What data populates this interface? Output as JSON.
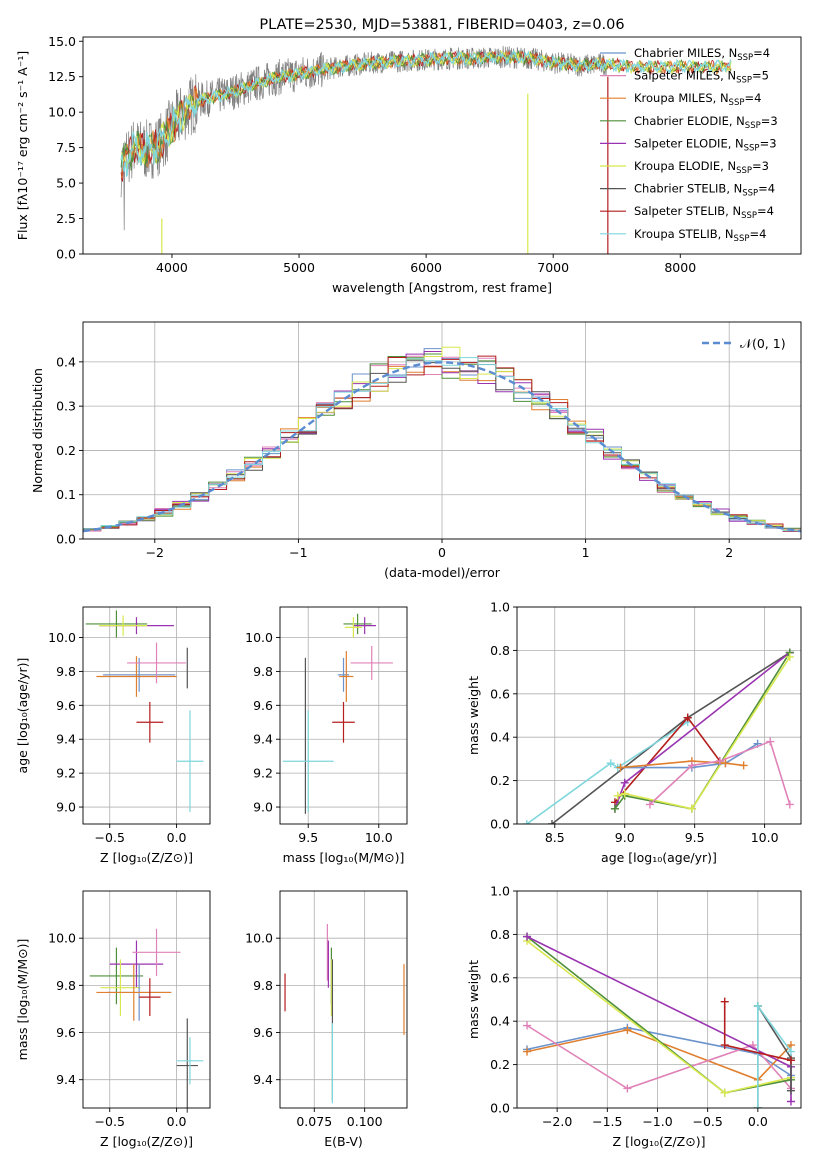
{
  "colors": {
    "chabrier_miles": "#6b93cc",
    "salpeter_miles": "#e082b8",
    "kroupa_miles": "#e07f2e",
    "chabrier_elodie": "#4f8f3a",
    "salpeter_elodie": "#9a33b1",
    "kroupa_elodie": "#d8e84e",
    "chabrier_stelib": "#555555",
    "salpeter_stelib": "#b41e1e",
    "kroupa_stelib": "#7fd6dc",
    "gauss": "#5b8bd0",
    "grid": "#b0b0b0"
  },
  "chart_data": [
    {
      "id": "spectrum",
      "type": "line",
      "title": "PLATE=2530, MJD=53881, FIBERID=0403, z=0.06",
      "xlabel": "wavelength [Angstrom, rest frame]",
      "ylabel": "Flux [fλ10⁻¹⁷ erg cm⁻² s⁻¹ A⁻¹]",
      "xlim": [
        3300,
        8950
      ],
      "ylim": [
        0,
        15.3
      ],
      "xticks": [
        4000,
        5000,
        6000,
        7000,
        8000
      ],
      "yticks": [
        "0.0",
        "2.5",
        "5.0",
        "7.5",
        "10.0",
        "12.5",
        "15.0"
      ],
      "grid": false,
      "legend_position": "right",
      "continuum": {
        "x": [
          3600,
          3700,
          3800,
          3900,
          4000,
          4100,
          4200,
          4400,
          4600,
          4800,
          5000,
          5200,
          5400,
          5600,
          5800,
          6000,
          6200,
          6400,
          6600,
          6800,
          7000,
          7200,
          7400,
          7600
        ],
        "y": [
          6.2,
          7.5,
          7.3,
          7.7,
          9.0,
          10.1,
          10.8,
          11.2,
          11.8,
          12.4,
          12.7,
          13.0,
          13.3,
          13.5,
          13.6,
          13.7,
          13.8,
          13.8,
          13.9,
          13.8,
          13.5,
          13.3,
          13.4,
          13.2
        ]
      },
      "model_range": [
        3600,
        8400
      ],
      "data_range": [
        3600,
        7430
      ],
      "spikes": [
        {
          "x": 3920,
          "ymin": 0,
          "ymax": 2.5,
          "color": "kroupa_elodie"
        },
        {
          "x": 6800,
          "ymin": 0,
          "ymax": 11.3,
          "color": "kroupa_elodie"
        },
        {
          "x": 7430,
          "ymin": 0,
          "ymax": 12.5,
          "color": "salpeter_stelib"
        }
      ],
      "legend": [
        {
          "label": "Chabrier MILES, N",
          "sub": "SSP",
          "suffix": "=4",
          "color": "chabrier_miles"
        },
        {
          "label": "Salpeter MILES, N",
          "sub": "SSP",
          "suffix": "=5",
          "color": "salpeter_miles"
        },
        {
          "label": "Kroupa MILES, N",
          "sub": "SSP",
          "suffix": "=4",
          "color": "kroupa_miles"
        },
        {
          "label": "Chabrier ELODIE, N",
          "sub": "SSP",
          "suffix": "=3",
          "color": "chabrier_elodie"
        },
        {
          "label": "Salpeter ELODIE, N",
          "sub": "SSP",
          "suffix": "=3",
          "color": "salpeter_elodie"
        },
        {
          "label": "Kroupa ELODIE, N",
          "sub": "SSP",
          "suffix": "=3",
          "color": "kroupa_elodie"
        },
        {
          "label": "Chabrier STELIB, N",
          "sub": "SSP",
          "suffix": "=4",
          "color": "chabrier_stelib"
        },
        {
          "label": "Salpeter STELIB, N",
          "sub": "SSP",
          "suffix": "=4",
          "color": "salpeter_stelib"
        },
        {
          "label": "Kroupa STELIB, N",
          "sub": "SSP",
          "suffix": "=4",
          "color": "kroupa_stelib"
        }
      ]
    },
    {
      "id": "residuals",
      "type": "line",
      "xlabel": "(data-model)/error",
      "ylabel": "Normed distribution",
      "xlim": [
        -2.5,
        2.5
      ],
      "ylim": [
        0,
        0.49
      ],
      "xticks": [
        -2,
        -1,
        0,
        1,
        2
      ],
      "xticklabels": [
        "−2",
        "−1",
        "0",
        "1",
        "2"
      ],
      "yticks": [
        "0.0",
        "0.1",
        "0.2",
        "0.3",
        "0.4"
      ],
      "grid": true,
      "legend_position": "top-right",
      "legend_label": "𝒩(0, 1)",
      "bin_edges_start": -2.5,
      "bin_width": 0.125,
      "n_bins": 40
    },
    {
      "id": "age_vs_z",
      "type": "scatter",
      "xlabel": "Z [log₁₀(Z/Z⊙)]",
      "ylabel": "age  [log₁₀(age/yr)]",
      "xlim": [
        -0.7,
        0.25
      ],
      "ylim": [
        8.9,
        10.18
      ],
      "xticks": [
        -0.5,
        0.0
      ],
      "xticklabels": [
        "−0.5",
        "0.0"
      ],
      "yticks": [
        9.0,
        9.2,
        9.4,
        9.6,
        9.8,
        10.0
      ],
      "yticklabels": [
        "9.0",
        "9.2",
        "9.4",
        "9.6",
        "9.8",
        "10.0"
      ],
      "grid": true,
      "points": [
        {
          "c": "chabrier_elodie",
          "x": -0.45,
          "xerr": 0.23,
          "y": 10.08,
          "yerr": 0.08
        },
        {
          "c": "salpeter_elodie",
          "x": -0.3,
          "xerr": 0.28,
          "y": 10.07,
          "yerr": 0.05
        },
        {
          "c": "kroupa_elodie",
          "x": -0.4,
          "xerr": 0.18,
          "y": 10.07,
          "yerr": 0.06
        },
        {
          "c": "chabrier_miles",
          "x": -0.28,
          "xerr": 0.27,
          "y": 9.78,
          "yerr": 0.1
        },
        {
          "c": "kroupa_miles",
          "x": -0.3,
          "xerr": 0.3,
          "y": 9.77,
          "yerr": 0.12
        },
        {
          "c": "salpeter_miles",
          "x": -0.15,
          "xerr": 0.22,
          "y": 9.85,
          "yerr": 0.12
        },
        {
          "c": "salpeter_stelib",
          "x": -0.2,
          "xerr": 0.1,
          "y": 9.5,
          "yerr": 0.12
        },
        {
          "c": "chabrier_stelib",
          "x": 0.08,
          "xerr": 0.0,
          "y": 9.82,
          "yerr": 0.12
        },
        {
          "c": "kroupa_stelib",
          "x": 0.1,
          "xerr": 0.1,
          "y": 9.27,
          "yerr": 0.3
        }
      ]
    },
    {
      "id": "age_vs_mass",
      "type": "scatter",
      "xlabel": "mass [log₁₀(M/M⊙)]",
      "ylabel": "",
      "xlim": [
        9.3,
        10.2
      ],
      "ylim": [
        8.9,
        10.18
      ],
      "xticks": [
        9.5,
        10.0
      ],
      "xticklabels": [
        "9.5",
        "10.0"
      ],
      "yticks": [
        9.0,
        9.2,
        9.4,
        9.6,
        9.8,
        10.0
      ],
      "yticklabels": [
        "9.0",
        "9.2",
        "9.4",
        "9.6",
        "9.8",
        "10.0"
      ],
      "grid": true,
      "points": [
        {
          "c": "chabrier_elodie",
          "x": 9.85,
          "xerr": 0.1,
          "y": 10.08,
          "yerr": 0.06
        },
        {
          "c": "salpeter_elodie",
          "x": 9.9,
          "xerr": 0.08,
          "y": 10.07,
          "yerr": 0.05
        },
        {
          "c": "kroupa_elodie",
          "x": 9.82,
          "xerr": 0.06,
          "y": 10.06,
          "yerr": 0.06
        },
        {
          "c": "chabrier_miles",
          "x": 9.75,
          "xerr": 0.04,
          "y": 9.78,
          "yerr": 0.1
        },
        {
          "c": "kroupa_miles",
          "x": 9.77,
          "xerr": 0.05,
          "y": 9.77,
          "yerr": 0.15
        },
        {
          "c": "salpeter_miles",
          "x": 9.95,
          "xerr": 0.15,
          "y": 9.85,
          "yerr": 0.1
        },
        {
          "c": "salpeter_stelib",
          "x": 9.75,
          "xerr": 0.08,
          "y": 9.5,
          "yerr": 0.12
        },
        {
          "c": "chabrier_stelib",
          "x": 9.48,
          "xerr": 0.0,
          "y": 9.42,
          "yerr": 0.46
        },
        {
          "c": "kroupa_stelib",
          "x": 9.5,
          "xerr": 0.18,
          "y": 9.27,
          "yerr": 0.3
        }
      ]
    },
    {
      "id": "weight_vs_age",
      "type": "line",
      "xlabel": "age  [log₁₀(age/yr)]",
      "ylabel": "mass weight",
      "xlim": [
        8.23,
        10.26
      ],
      "ylim": [
        0,
        1.0
      ],
      "xticks": [
        8.5,
        9.0,
        9.5,
        10.0
      ],
      "xticklabels": [
        "8.5",
        "9.0",
        "9.5",
        "10.0"
      ],
      "yticks": [
        0.0,
        0.2,
        0.4,
        0.6,
        0.8,
        1.0
      ],
      "yticklabels": [
        "0.0",
        "0.2",
        "0.4",
        "0.6",
        "0.8",
        "1.0"
      ],
      "grid": true,
      "series": [
        {
          "c": "chabrier_stelib",
          "x": [
            8.48,
            9.45,
            10.18
          ],
          "y": [
            0.0,
            0.49,
            0.79
          ]
        },
        {
          "c": "kroupa_stelib",
          "x": [
            8.3,
            8.9,
            8.95,
            9.45
          ],
          "y": [
            0.0,
            0.28,
            0.26,
            0.47
          ]
        },
        {
          "c": "salpeter_stelib",
          "x": [
            8.93,
            9.45,
            9.68
          ],
          "y": [
            0.1,
            0.49,
            0.29
          ]
        },
        {
          "c": "salpeter_elodie",
          "x": [
            8.93,
            9.0,
            10.18
          ],
          "y": [
            0.07,
            0.19,
            0.79
          ]
        },
        {
          "c": "chabrier_elodie",
          "x": [
            8.93,
            9.0,
            9.48,
            10.18
          ],
          "y": [
            0.07,
            0.13,
            0.07,
            0.79
          ]
        },
        {
          "c": "kroupa_elodie",
          "x": [
            8.95,
            9.0,
            9.48,
            10.18
          ],
          "y": [
            0.13,
            0.14,
            0.07,
            0.77
          ]
        },
        {
          "c": "chabrier_miles",
          "x": [
            8.97,
            9.48,
            9.72,
            9.95
          ],
          "y": [
            0.26,
            0.26,
            0.28,
            0.37
          ]
        },
        {
          "c": "kroupa_miles",
          "x": [
            8.97,
            9.48,
            9.72,
            9.85
          ],
          "y": [
            0.26,
            0.29,
            0.28,
            0.27
          ]
        },
        {
          "c": "salpeter_miles",
          "x": [
            9.18,
            9.48,
            9.68,
            10.04,
            10.18
          ],
          "y": [
            0.09,
            0.27,
            0.29,
            0.38,
            0.09
          ]
        }
      ]
    },
    {
      "id": "mass_vs_z",
      "type": "scatter",
      "xlabel": "Z [log₁₀(Z/Z⊙)]",
      "ylabel": "mass [log₁₀(M/M⊙)]",
      "xlim": [
        -0.7,
        0.25
      ],
      "ylim": [
        9.28,
        10.2
      ],
      "xticks": [
        -0.5,
        0.0
      ],
      "xticklabels": [
        "−0.5",
        "0.0"
      ],
      "yticks": [
        9.4,
        9.6,
        9.8,
        10.0
      ],
      "yticklabels": [
        "9.4",
        "9.6",
        "9.8",
        "10.0"
      ],
      "grid": true,
      "points": [
        {
          "c": "chabrier_elodie",
          "x": -0.45,
          "xerr": 0.2,
          "y": 9.84,
          "yerr": 0.12
        },
        {
          "c": "salpeter_elodie",
          "x": -0.3,
          "xerr": 0.2,
          "y": 9.89,
          "yerr": 0.1
        },
        {
          "c": "kroupa_elodie",
          "x": -0.42,
          "xerr": 0.15,
          "y": 9.79,
          "yerr": 0.12
        },
        {
          "c": "chabrier_miles",
          "x": -0.28,
          "xerr": 0.24,
          "y": 9.77,
          "yerr": 0.12
        },
        {
          "c": "kroupa_miles",
          "x": -0.32,
          "xerr": 0.28,
          "y": 9.77,
          "yerr": 0.12
        },
        {
          "c": "salpeter_miles",
          "x": -0.15,
          "xerr": 0.18,
          "y": 9.94,
          "yerr": 0.1
        },
        {
          "c": "salpeter_stelib",
          "x": -0.2,
          "xerr": 0.08,
          "y": 9.75,
          "yerr": 0.08
        },
        {
          "c": "chabrier_stelib",
          "x": 0.08,
          "xerr": 0.08,
          "y": 9.46,
          "yerr": 0.2
        },
        {
          "c": "kroupa_stelib",
          "x": 0.1,
          "xerr": 0.1,
          "y": 9.48,
          "yerr": 0.1
        }
      ]
    },
    {
      "id": "mass_vs_ebv",
      "type": "scatter",
      "xlabel": "E(B-V)",
      "ylabel": "",
      "xlim": [
        0.058,
        0.121
      ],
      "ylim": [
        9.28,
        10.2
      ],
      "xticks": [
        0.075,
        0.1
      ],
      "xticklabels": [
        "0.075",
        "0.100"
      ],
      "yticks": [
        9.4,
        9.6,
        9.8,
        10.0
      ],
      "yticklabels": [
        "9.4",
        "9.6",
        "9.8",
        "10.0"
      ],
      "grid": true,
      "points": [
        {
          "c": "salpeter_stelib",
          "x": 0.0605,
          "xerr": 0,
          "y": 9.77,
          "yerr": 0.08
        },
        {
          "c": "salpeter_miles",
          "x": 0.0815,
          "xerr": 0,
          "y": 9.94,
          "yerr": 0.12
        },
        {
          "c": "salpeter_elodie",
          "x": 0.082,
          "xerr": 0,
          "y": 9.89,
          "yerr": 0.1
        },
        {
          "c": "chabrier_elodie",
          "x": 0.0835,
          "xerr": 0,
          "y": 9.84,
          "yerr": 0.12
        },
        {
          "c": "kroupa_elodie",
          "x": 0.0835,
          "xerr": 0,
          "y": 9.79,
          "yerr": 0.12
        },
        {
          "c": "chabrier_stelib",
          "x": 0.084,
          "xerr": 0,
          "y": 9.61,
          "yerr": 0.3
        },
        {
          "c": "kroupa_stelib",
          "x": 0.084,
          "xerr": 0,
          "y": 9.47,
          "yerr": 0.17
        },
        {
          "c": "kroupa_miles",
          "x": 0.1195,
          "xerr": 0,
          "y": 9.74,
          "yerr": 0.15
        }
      ]
    },
    {
      "id": "weight_vs_z",
      "type": "line",
      "xlabel": "Z [log₁₀(Z/Z⊙)]",
      "ylabel": "mass weight",
      "xlim": [
        -2.4,
        0.43
      ],
      "ylim": [
        0,
        1.0
      ],
      "xticks": [
        -2.0,
        -1.5,
        -1.0,
        -0.5,
        0.0
      ],
      "xticklabels": [
        "−2.0",
        "−1.5",
        "−1.0",
        "−0.5",
        "0.0"
      ],
      "yticks": [
        0.0,
        0.2,
        0.4,
        0.6,
        0.8,
        1.0
      ],
      "yticklabels": [
        "0.0",
        "0.2",
        "0.4",
        "0.6",
        "0.8",
        "1.0"
      ],
      "grid": true,
      "series": [
        {
          "c": "chabrier_miles",
          "x": [
            -2.3,
            -1.3,
            0.0,
            0.33
          ],
          "y": [
            0.27,
            0.37,
            0.25,
            0.15
          ]
        },
        {
          "c": "kroupa_miles",
          "x": [
            -2.3,
            -1.3,
            0.0,
            0.33
          ],
          "y": [
            0.26,
            0.36,
            0.13,
            0.29
          ]
        },
        {
          "c": "salpeter_miles",
          "x": [
            -2.3,
            -1.3,
            -0.05,
            0.33
          ],
          "y": [
            0.38,
            0.09,
            0.29,
            0.09
          ]
        },
        {
          "c": "chabrier_elodie",
          "x": [
            -2.3,
            -0.33,
            0.33
          ],
          "y": [
            0.79,
            0.07,
            0.13
          ]
        },
        {
          "c": "kroupa_elodie",
          "x": [
            -2.3,
            -0.33,
            0.33
          ],
          "y": [
            0.77,
            0.07,
            0.14
          ]
        },
        {
          "c": "salpeter_elodie",
          "x": [
            -2.3,
            0.33,
            0.33
          ],
          "y": [
            0.79,
            0.19,
            0.03
          ]
        },
        {
          "c": "chabrier_stelib",
          "x": [
            0.0,
            0.0,
            0.33,
            0.33
          ],
          "y": [
            0.0,
            0.47,
            0.23,
            0.08
          ]
        },
        {
          "c": "kroupa_stelib",
          "x": [
            0.0,
            0.0,
            0.33
          ],
          "y": [
            0.0,
            0.47,
            0.26
          ]
        },
        {
          "c": "salpeter_stelib",
          "x": [
            -0.33,
            -0.33,
            0.33
          ],
          "y": [
            0.49,
            0.29,
            0.22
          ]
        }
      ]
    }
  ]
}
